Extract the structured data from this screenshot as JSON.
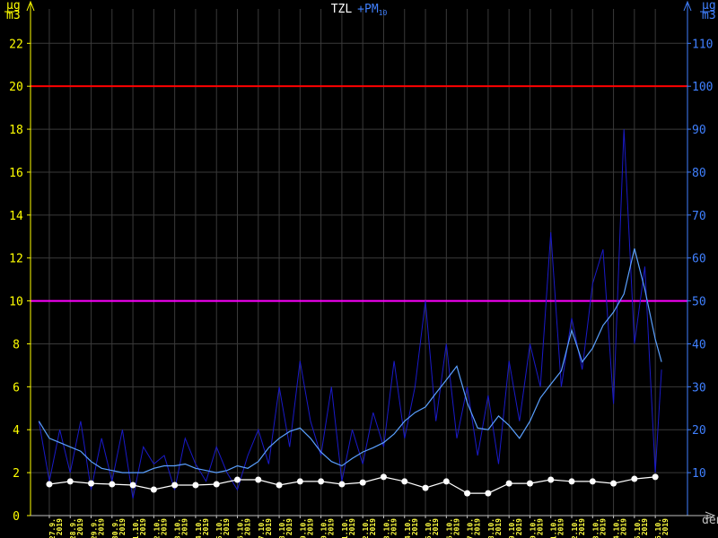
{
  "chart_data": {
    "type": "line",
    "title": {
      "main": "TZL",
      "second": "+PM",
      "second_sub": "10"
    },
    "y_unit": {
      "num": "µg",
      "den": "m3"
    },
    "y2_unit": {
      "num": "µg",
      "den": "m3"
    },
    "x_label": "den",
    "xlim": [
      -0.9,
      30.54
    ],
    "ylim": [
      0,
      23.6
    ],
    "y2lim": [
      0,
      118
    ],
    "yticks": [
      0,
      2,
      4,
      6,
      8,
      10,
      12,
      14,
      16,
      18,
      20,
      22
    ],
    "y2ticks": [
      10,
      20,
      30,
      40,
      50,
      60,
      70,
      80,
      90,
      100,
      110
    ],
    "xticks": [
      {
        "value": 0,
        "label": "27.9.\n2019"
      },
      {
        "value": 1,
        "label": "28.9.\n2019"
      },
      {
        "value": 2,
        "label": "29.9.\n2019"
      },
      {
        "value": 3,
        "label": "30.9.\n2019"
      },
      {
        "value": 4,
        "label": "1.10.\n2019"
      },
      {
        "value": 5,
        "label": "2.10.\n2019"
      },
      {
        "value": 6,
        "label": "3.10.\n2019"
      },
      {
        "value": 7,
        "label": "4.10.\n2019"
      },
      {
        "value": 8,
        "label": "5.10.\n2019"
      },
      {
        "value": 9,
        "label": "6.10.\n2019"
      },
      {
        "value": 10,
        "label": "7.10.\n2019"
      },
      {
        "value": 11,
        "label": "8.10.\n2019"
      },
      {
        "value": 12,
        "label": "9.10.\n2019"
      },
      {
        "value": 13,
        "label": "10.10.\n2019"
      },
      {
        "value": 14,
        "label": "11.10.\n2019"
      },
      {
        "value": 15,
        "label": "12.10.\n2019"
      },
      {
        "value": 16,
        "label": "13.10.\n2019"
      },
      {
        "value": 17,
        "label": "14.10.\n2019"
      },
      {
        "value": 18,
        "label": "15.10.\n2019"
      },
      {
        "value": 19,
        "label": "16.10.\n2019"
      },
      {
        "value": 20,
        "label": "17.10.\n2019"
      },
      {
        "value": 21,
        "label": "18.10.\n2019"
      },
      {
        "value": 22,
        "label": "19.10.\n2019"
      },
      {
        "value": 23,
        "label": "20.10.\n2019"
      },
      {
        "value": 24,
        "label": "21.10.\n2019"
      },
      {
        "value": 25,
        "label": "22.10.\n2019"
      },
      {
        "value": 26,
        "label": "23.10.\n2019"
      },
      {
        "value": 27,
        "label": "24.10.\n2019"
      },
      {
        "value": 28,
        "label": "25.10.\n2019"
      },
      {
        "value": 29,
        "label": "26.10.\n2019"
      }
    ],
    "grid": true,
    "thresholds": [
      {
        "value": 20,
        "color": "#ff0000"
      },
      {
        "value": 10,
        "color": "#ff00ff"
      }
    ],
    "series": [
      {
        "color": "#1a1ac8",
        "axis": "y2",
        "markers": false,
        "width": 1,
        "x": [
          -0.5,
          0,
          0.5,
          1,
          1.5,
          2,
          2.5,
          3,
          3.5,
          4,
          4.5,
          5,
          5.5,
          6,
          6.5,
          7,
          7.5,
          8,
          8.5,
          9,
          9.5,
          10,
          10.5,
          11,
          11.5,
          12,
          12.5,
          13,
          13.5,
          14,
          14.5,
          15,
          15.5,
          16,
          16.5,
          17,
          17.5,
          18,
          18.5,
          19,
          19.5,
          20,
          20.5,
          21,
          21.5,
          22,
          22.5,
          23,
          23.5,
          24,
          24.5,
          25,
          25.5,
          26,
          26.5,
          27,
          27.5,
          28,
          28.5,
          29,
          29.3
        ],
        "values": [
          22,
          8,
          20,
          10,
          22,
          6,
          18,
          8,
          20,
          4,
          16,
          12,
          14,
          6,
          18,
          12,
          8,
          16,
          10,
          6,
          14,
          20,
          12,
          30,
          16,
          36,
          22,
          14,
          30,
          8,
          20,
          12,
          24,
          16,
          36,
          18,
          30,
          50,
          22,
          40,
          18,
          30,
          14,
          28,
          12,
          36,
          22,
          40,
          30,
          66,
          30,
          46,
          34,
          54,
          62,
          26,
          90,
          40,
          58,
          10,
          34
        ]
      },
      {
        "color": "#5aa0ff",
        "axis": "y2",
        "markers": false,
        "width": 1.2,
        "x": [
          -0.5,
          0,
          0.5,
          1,
          1.5,
          2,
          2.5,
          3,
          3.5,
          4,
          4.5,
          5,
          5.5,
          6,
          6.5,
          7,
          7.5,
          8,
          8.5,
          9,
          9.5,
          10,
          10.5,
          11,
          11.5,
          12,
          12.5,
          13,
          13.5,
          14,
          14.5,
          15,
          15.5,
          16,
          16.5,
          17,
          17.5,
          18,
          18.5,
          19,
          19.5,
          20,
          20.5,
          21,
          21.5,
          22,
          22.5,
          23,
          23.5,
          24,
          24.5,
          25,
          25.5,
          26,
          26.5,
          27,
          27.5,
          28,
          28.5,
          29,
          29.3
        ],
        "values": [
          22,
          18,
          17,
          16,
          15,
          12.6,
          11,
          10.5,
          10,
          10,
          10,
          11,
          11.6,
          11.6,
          12,
          11,
          10.5,
          10,
          10.5,
          11.6,
          11,
          12.6,
          15.8,
          18,
          19.6,
          20.4,
          18,
          14.8,
          12.6,
          11.6,
          13.3,
          14.8,
          15.8,
          17,
          19,
          22,
          24,
          25.3,
          28.5,
          31.6,
          34.8,
          26.3,
          20.4,
          20,
          23.2,
          21,
          18,
          22,
          27.4,
          30.6,
          33.7,
          43.2,
          35.8,
          39,
          44.3,
          47.4,
          51.6,
          62.2,
          52.7,
          41.1,
          35.8
        ]
      },
      {
        "color": "#ffffff",
        "axis": "y",
        "markers": true,
        "width": 1.2,
        "x": [
          0,
          1,
          2,
          3,
          4,
          5,
          6,
          7,
          8,
          9,
          10,
          11,
          12,
          13,
          14,
          15,
          16,
          17,
          18,
          19,
          20,
          21,
          22,
          23,
          24,
          25,
          26,
          27,
          28,
          29
        ],
        "values": [
          1.46,
          1.59,
          1.5,
          1.46,
          1.42,
          1.21,
          1.42,
          1.42,
          1.46,
          1.67,
          1.67,
          1.42,
          1.59,
          1.59,
          1.46,
          1.54,
          1.8,
          1.59,
          1.29,
          1.59,
          1.04,
          1.04,
          1.5,
          1.5,
          1.67,
          1.59,
          1.59,
          1.5,
          1.71,
          1.8
        ]
      }
    ]
  }
}
